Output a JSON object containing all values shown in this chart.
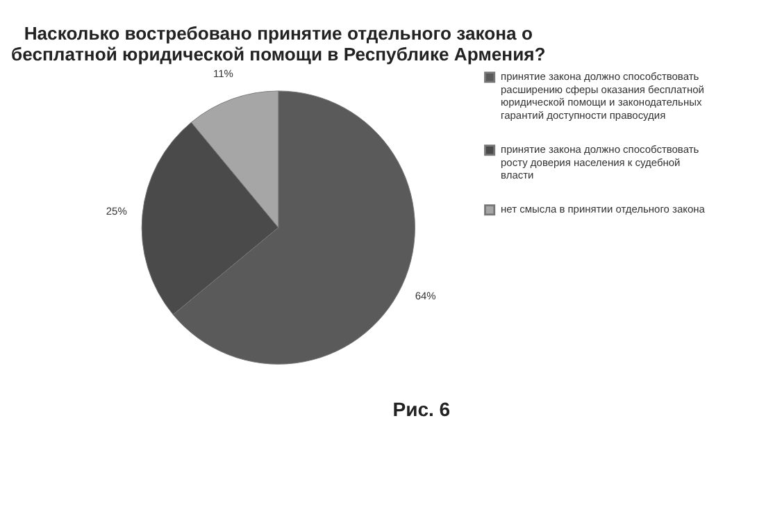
{
  "chart_data": {
    "type": "pie",
    "title": "Насколько востребовано принятие отдельного закона о бесплатной юридической помощи в Республике Армения?",
    "categories": [
      "принятие закона должно способствовать расширению сферы оказания бесплатной юридической помощи и законодательных гарантий доступности правосудия",
      "принятие закона должно способствовать росту доверия населения к судебной власти",
      "нет смысла в принятии отдельного закона"
    ],
    "values": [
      64,
      25,
      11
    ],
    "colors": [
      "#5a5a5a",
      "#4a4a4a",
      "#a6a6a6"
    ],
    "value_labels": [
      "64%",
      "25%",
      "11%"
    ],
    "legend": "right",
    "annotations": [
      "Рис. 6"
    ]
  }
}
